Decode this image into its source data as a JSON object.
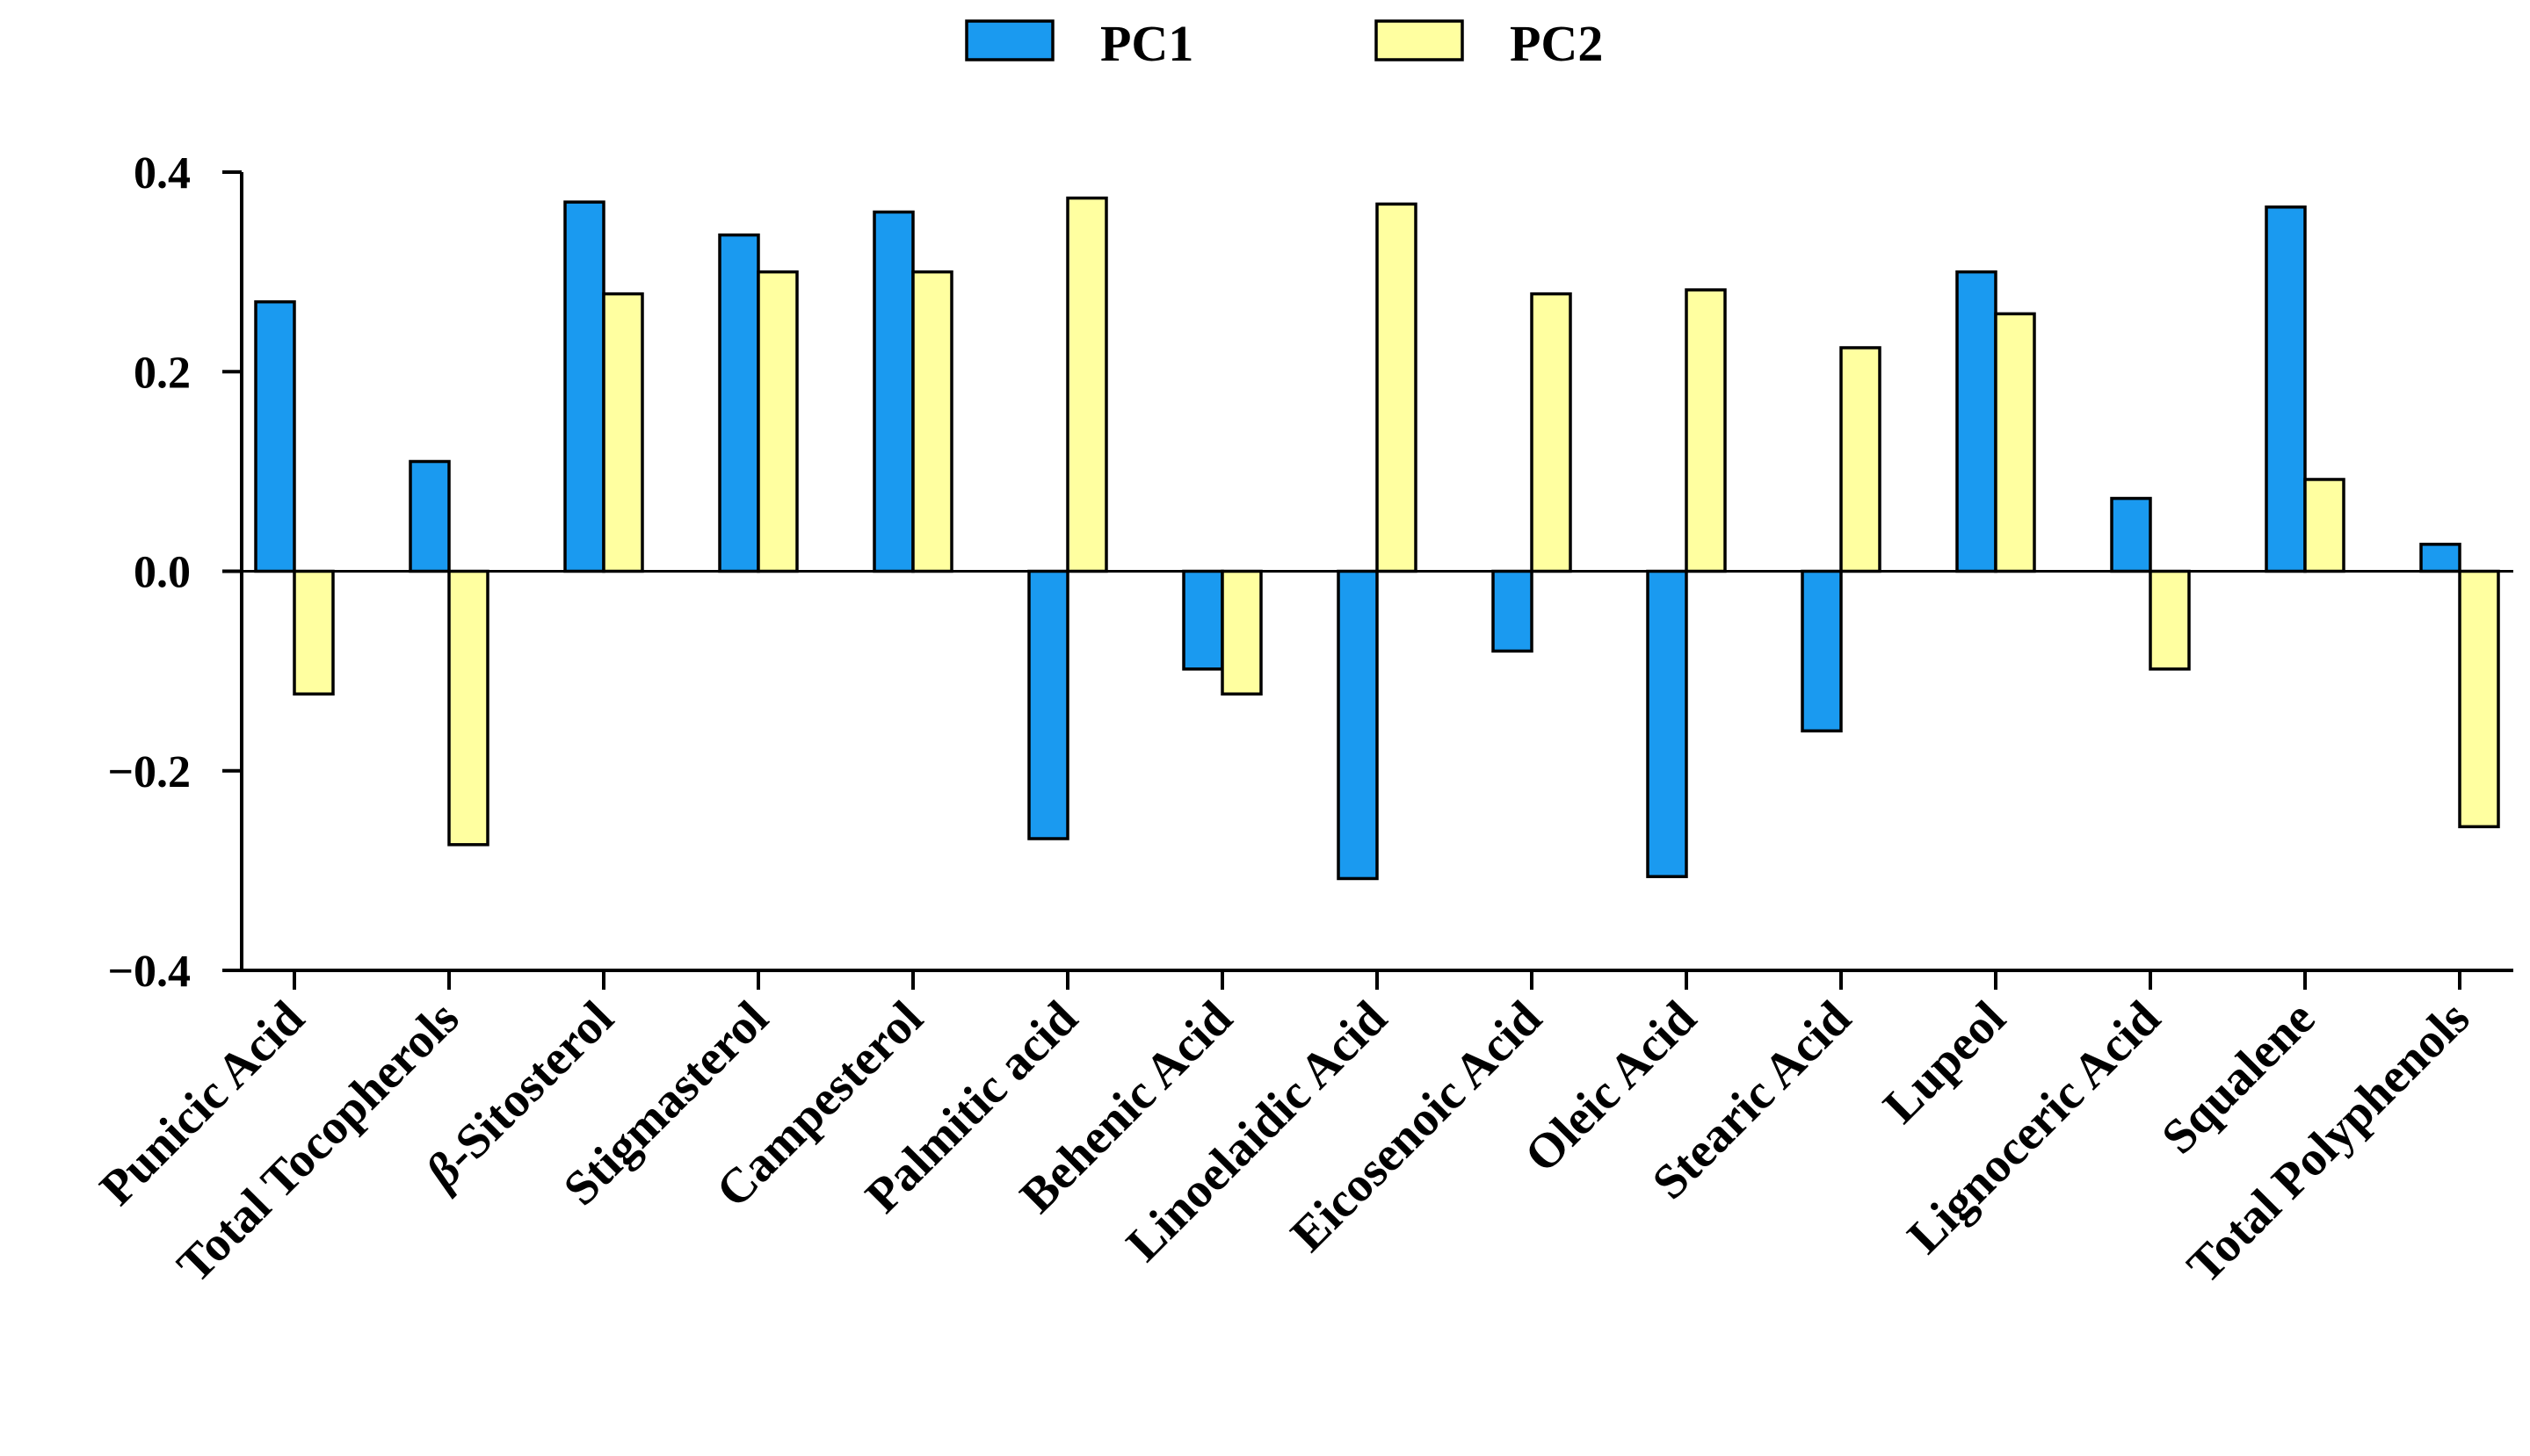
{
  "chart_data": {
    "type": "bar",
    "title": "",
    "xlabel": "",
    "ylabel": "",
    "ylim": [
      -0.4,
      0.4
    ],
    "yticks": [
      0.4,
      0.2,
      0.0,
      -0.2,
      -0.4
    ],
    "ytick_labels": [
      "0.4",
      "0.2",
      "0.0",
      "−0.2",
      "−0.4"
    ],
    "legend_position": "top-center",
    "categories": [
      "Punicic Acid",
      "Total Tocopherols",
      "β-Sitosterol",
      "Stigmasterol",
      "Campesterol",
      "Palmitic acid",
      "Behenic Acid",
      "Linoelaidic Acid",
      "Eicosenoic Acid",
      "Oleic Acid",
      "Stearic Acid",
      "Lupeol",
      "Lignoceric Acid",
      "Squalene",
      "Total Polyphenols"
    ],
    "series": [
      {
        "name": "PC1",
        "color": "#1a9af0",
        "values": [
          0.27,
          0.11,
          0.37,
          0.337,
          0.36,
          -0.268,
          -0.098,
          -0.308,
          -0.08,
          -0.306,
          -0.16,
          0.3,
          0.073,
          0.365,
          0.027
        ]
      },
      {
        "name": "PC2",
        "color": "#ffffa0",
        "values": [
          -0.123,
          -0.274,
          0.278,
          0.3,
          0.3,
          0.374,
          -0.123,
          0.368,
          0.278,
          0.282,
          0.224,
          0.258,
          -0.098,
          0.092,
          -0.256
        ]
      }
    ]
  }
}
